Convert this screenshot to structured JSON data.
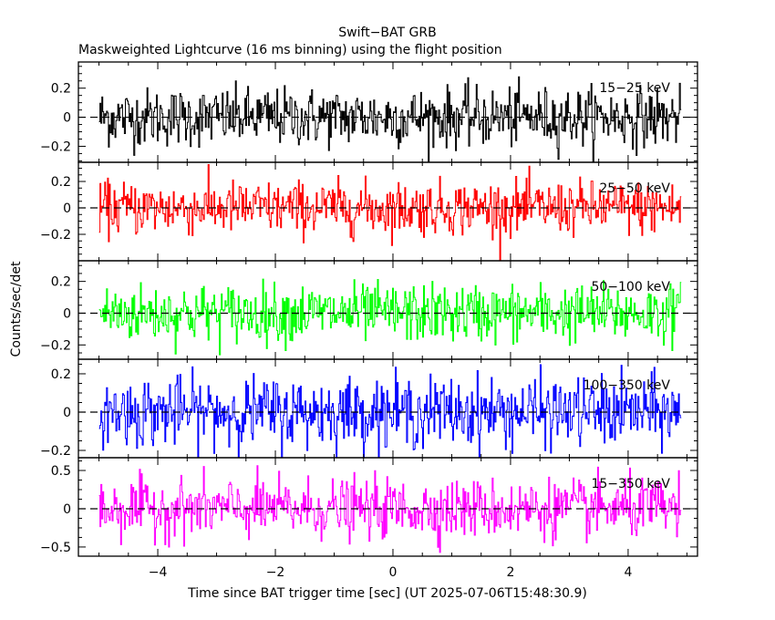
{
  "chart_data": {
    "type": "line",
    "title": "Swift−BAT GRB",
    "subtitle": "Maskweighted Lightcurve (16 ms binning) using the flight position",
    "xlabel": "Time since BAT trigger time [sec] (UT 2025-07-06T15:48:30.9)",
    "ylabel": "Counts/sec/det",
    "xlim": [
      -5.35,
      5.18
    ],
    "x_ticks": [
      -4,
      -2,
      0,
      2,
      4
    ],
    "x_tick_labels": [
      "−4",
      "−2",
      "0",
      "2",
      "4"
    ],
    "bin_size_sec": 0.016,
    "data_time_range": [
      -5.0,
      4.9
    ],
    "grid": false,
    "zero_line": "dashed",
    "panels": [
      {
        "name": "15−25 keV",
        "color": "#000000",
        "ylim": [
          -0.31,
          0.38
        ],
        "y_ticks": [
          -0.2,
          0,
          0.2
        ],
        "y_tick_labels": [
          "−0.2",
          "0",
          "0.2"
        ],
        "noise_sigma": 0.1
      },
      {
        "name": "25−50 keV",
        "color": "#ff0000",
        "ylim": [
          -0.4,
          0.345
        ],
        "y_ticks": [
          -0.2,
          0,
          0.2
        ],
        "y_tick_labels": [
          "−0.2",
          "0",
          "0.2"
        ],
        "noise_sigma": 0.1
      },
      {
        "name": "50−100 keV",
        "color": "#00ff00",
        "ylim": [
          -0.29,
          0.33
        ],
        "y_ticks": [
          -0.2,
          0,
          0.2
        ],
        "y_tick_labels": [
          "−0.2",
          "0",
          "0.2"
        ],
        "noise_sigma": 0.09
      },
      {
        "name": "100−350 keV",
        "color": "#0000ff",
        "ylim": [
          -0.238,
          0.276
        ],
        "y_ticks": [
          -0.2,
          0,
          0.2
        ],
        "y_tick_labels": [
          "−0.2",
          "0",
          "0.2"
        ],
        "noise_sigma": 0.09
      },
      {
        "name": "15−350 keV",
        "color": "#ff00ff",
        "ylim": [
          -0.62,
          0.667
        ],
        "y_ticks": [
          -0.5,
          0,
          0.5
        ],
        "y_tick_labels": [
          "−0.5",
          "0",
          "0.5"
        ],
        "noise_sigma": 0.19
      }
    ]
  }
}
